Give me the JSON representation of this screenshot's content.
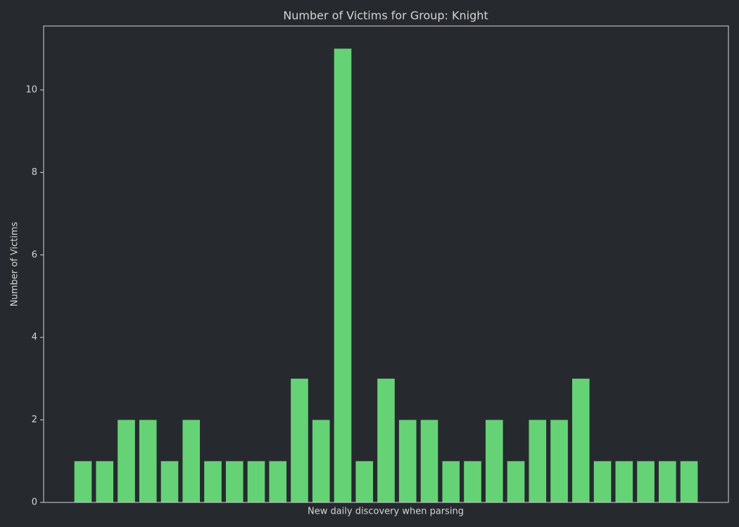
{
  "chart_data": {
    "type": "bar",
    "title": "Number of Victims for Group: Knight",
    "x_label": "New daily discovery when parsing",
    "y_label": "Number of Victims",
    "categories": [
      null,
      null,
      null,
      null,
      null,
      null,
      null,
      null,
      null,
      null,
      null,
      null,
      null,
      null,
      null,
      null,
      null,
      null,
      null,
      null,
      null,
      null,
      null,
      null,
      null,
      null,
      null,
      null,
      null
    ],
    "values": [
      1,
      1,
      2,
      2,
      1,
      2,
      1,
      1,
      1,
      1,
      3,
      2,
      11,
      1,
      3,
      2,
      2,
      1,
      1,
      2,
      1,
      2,
      2,
      3,
      1,
      1,
      1,
      1,
      1
    ],
    "color": "#66d276",
    "ylim": [
      0,
      11.55
    ],
    "yticks": [
      0,
      2,
      4,
      6,
      8,
      10
    ],
    "grid": false
  }
}
